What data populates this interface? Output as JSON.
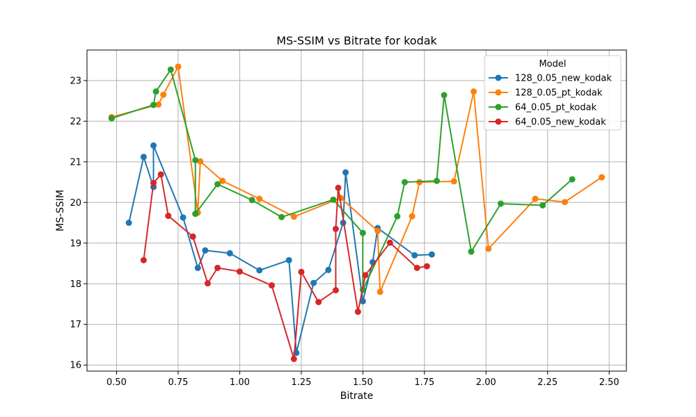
{
  "chart_data": {
    "type": "line",
    "title": "MS-SSIM vs Bitrate for kodak",
    "xlabel": "Bitrate",
    "ylabel": "MS-SSIM",
    "xlim": [
      0.38,
      2.57
    ],
    "ylim": [
      15.85,
      23.75
    ],
    "xticks": [
      0.5,
      0.75,
      1.0,
      1.25,
      1.5,
      1.75,
      2.0,
      2.25,
      2.5
    ],
    "xtick_labels": [
      "0.50",
      "0.75",
      "1.00",
      "1.25",
      "1.50",
      "1.75",
      "2.00",
      "2.25",
      "2.50"
    ],
    "yticks": [
      16,
      17,
      18,
      19,
      20,
      21,
      22,
      23
    ],
    "ytick_labels": [
      "16",
      "17",
      "18",
      "19",
      "20",
      "21",
      "22",
      "23"
    ],
    "grid": true,
    "legend": {
      "title": "Model",
      "placement": "top-right"
    },
    "series": [
      {
        "name": "128_0.05_new_kodak",
        "color": "#1f77b4",
        "points": [
          [
            0.55,
            19.5
          ],
          [
            0.61,
            21.12
          ],
          [
            0.65,
            20.38
          ],
          [
            0.65,
            21.4
          ],
          [
            0.77,
            19.63
          ],
          [
            0.83,
            18.39
          ],
          [
            0.86,
            18.82
          ],
          [
            0.96,
            18.75
          ],
          [
            1.08,
            18.33
          ],
          [
            1.2,
            18.58
          ],
          [
            1.23,
            16.3
          ],
          [
            1.3,
            18.02
          ],
          [
            1.36,
            18.34
          ],
          [
            1.42,
            19.5
          ],
          [
            1.43,
            20.74
          ],
          [
            1.5,
            17.57
          ],
          [
            1.54,
            18.53
          ],
          [
            1.56,
            19.37
          ],
          [
            1.71,
            18.7
          ],
          [
            1.78,
            18.72
          ]
        ]
      },
      {
        "name": "128_0.05_pt_kodak",
        "color": "#ff7f0e",
        "points": [
          [
            0.48,
            22.1
          ],
          [
            0.67,
            22.41
          ],
          [
            0.69,
            22.65
          ],
          [
            0.75,
            23.34
          ],
          [
            0.83,
            19.75
          ],
          [
            0.84,
            21.01
          ],
          [
            0.93,
            20.53
          ],
          [
            1.08,
            20.09
          ],
          [
            1.22,
            19.65
          ],
          [
            1.41,
            20.11
          ],
          [
            1.56,
            19.3
          ],
          [
            1.57,
            17.8
          ],
          [
            1.7,
            19.66
          ],
          [
            1.73,
            20.5
          ],
          [
            1.87,
            20.52
          ],
          [
            1.95,
            22.73
          ],
          [
            2.01,
            18.86
          ],
          [
            2.2,
            20.09
          ],
          [
            2.32,
            20.01
          ],
          [
            2.47,
            20.62
          ]
        ]
      },
      {
        "name": "64_0.05_pt_kodak",
        "color": "#2ca02c",
        "points": [
          [
            0.48,
            22.07
          ],
          [
            0.65,
            22.4
          ],
          [
            0.66,
            22.73
          ],
          [
            0.72,
            23.27
          ],
          [
            0.82,
            21.04
          ],
          [
            0.82,
            19.72
          ],
          [
            0.91,
            20.45
          ],
          [
            1.05,
            20.06
          ],
          [
            1.17,
            19.64
          ],
          [
            1.38,
            20.07
          ],
          [
            1.5,
            19.25
          ],
          [
            1.5,
            17.85
          ],
          [
            1.64,
            19.66
          ],
          [
            1.67,
            20.5
          ],
          [
            1.8,
            20.53
          ],
          [
            1.83,
            22.64
          ],
          [
            1.94,
            18.79
          ],
          [
            2.06,
            19.97
          ],
          [
            2.23,
            19.93
          ],
          [
            2.35,
            20.57
          ]
        ]
      },
      {
        "name": "64_0.05_new_kodak",
        "color": "#d62728",
        "points": [
          [
            0.61,
            18.58
          ],
          [
            0.65,
            20.48
          ],
          [
            0.68,
            20.69
          ],
          [
            0.71,
            19.67
          ],
          [
            0.81,
            19.16
          ],
          [
            0.87,
            18.01
          ],
          [
            0.91,
            18.39
          ],
          [
            1.0,
            18.3
          ],
          [
            1.13,
            17.96
          ],
          [
            1.22,
            16.15
          ],
          [
            1.25,
            18.29
          ],
          [
            1.32,
            17.55
          ],
          [
            1.39,
            17.84
          ],
          [
            1.39,
            19.35
          ],
          [
            1.4,
            20.36
          ],
          [
            1.48,
            17.31
          ],
          [
            1.51,
            18.21
          ],
          [
            1.61,
            19.01
          ],
          [
            1.72,
            18.39
          ],
          [
            1.76,
            18.43
          ]
        ]
      }
    ]
  }
}
